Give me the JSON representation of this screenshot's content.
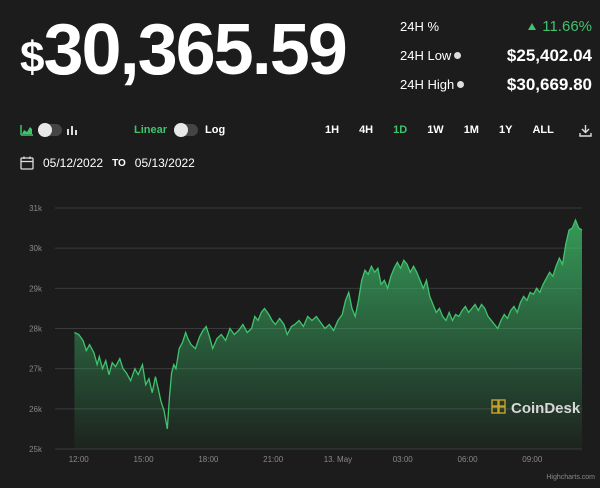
{
  "price": {
    "symbol": "$",
    "value": "30,365.59"
  },
  "stats": [
    {
      "label": "24H %",
      "value": "11.66%",
      "indicator": "up-triangle",
      "color": "#3ec46d"
    },
    {
      "label": "24H Low",
      "value": "$25,402.04",
      "info_icon": true
    },
    {
      "label": "24H High",
      "value": "$30,669.80",
      "info_icon": true
    }
  ],
  "controls": {
    "chart_type_icons": [
      "area-chart-icon",
      "bar-chart-icon"
    ],
    "scale_left": "Linear",
    "scale_right": "Log",
    "ranges": [
      "1H",
      "4H",
      "1D",
      "1W",
      "1M",
      "1Y",
      "ALL"
    ],
    "active_range": "1D",
    "download_icon": "download-icon"
  },
  "dates": {
    "from": "05/12/2022",
    "to_label": "TO",
    "to": "05/13/2022",
    "icon": "calendar-icon"
  },
  "watermark": "CoinDesk",
  "credit": "Highcharts.com",
  "colors": {
    "accent": "#3ec46d",
    "background": "#1c1c1c",
    "line": "#3ec46d"
  },
  "chart_data": {
    "type": "area",
    "x_tick_labels": [
      "12:00",
      "15:00",
      "18:00",
      "21:00",
      "13. May",
      "03:00",
      "06:00",
      "09:00"
    ],
    "y_tick_labels": [
      "25k",
      "26k",
      "27k",
      "28k",
      "29k",
      "30k",
      "31k"
    ],
    "ylim": [
      25000,
      31000
    ],
    "x_range_hours": [
      -1.1,
      23.3
    ],
    "points": [
      [
        -0.2,
        27.9
      ],
      [
        0,
        27.85
      ],
      [
        0.2,
        27.7
      ],
      [
        0.35,
        27.45
      ],
      [
        0.5,
        27.6
      ],
      [
        0.7,
        27.4
      ],
      [
        0.85,
        27.1
      ],
      [
        0.95,
        27.3
      ],
      [
        1.1,
        27.0
      ],
      [
        1.25,
        27.2
      ],
      [
        1.4,
        26.85
      ],
      [
        1.55,
        27.15
      ],
      [
        1.7,
        27.05
      ],
      [
        1.9,
        27.25
      ],
      [
        2.05,
        27.0
      ],
      [
        2.2,
        26.9
      ],
      [
        2.4,
        26.7
      ],
      [
        2.6,
        27.0
      ],
      [
        2.75,
        26.85
      ],
      [
        2.95,
        27.1
      ],
      [
        3.1,
        26.6
      ],
      [
        3.25,
        26.75
      ],
      [
        3.4,
        26.4
      ],
      [
        3.55,
        26.8
      ],
      [
        3.7,
        26.45
      ],
      [
        3.8,
        26.2
      ],
      [
        3.95,
        25.95
      ],
      [
        4.1,
        25.5
      ],
      [
        4.2,
        26.3
      ],
      [
        4.3,
        26.9
      ],
      [
        4.4,
        27.1
      ],
      [
        4.5,
        27.0
      ],
      [
        4.65,
        27.5
      ],
      [
        4.8,
        27.65
      ],
      [
        4.95,
        27.9
      ],
      [
        5.05,
        27.75
      ],
      [
        5.2,
        27.6
      ],
      [
        5.4,
        27.5
      ],
      [
        5.6,
        27.8
      ],
      [
        5.75,
        27.95
      ],
      [
        5.9,
        28.05
      ],
      [
        6.05,
        27.8
      ],
      [
        6.2,
        27.5
      ],
      [
        6.4,
        27.75
      ],
      [
        6.6,
        27.85
      ],
      [
        6.8,
        27.7
      ],
      [
        7.0,
        28.0
      ],
      [
        7.2,
        27.85
      ],
      [
        7.4,
        27.95
      ],
      [
        7.6,
        28.1
      ],
      [
        7.8,
        27.9
      ],
      [
        8.0,
        28.0
      ],
      [
        8.15,
        28.3
      ],
      [
        8.3,
        28.2
      ],
      [
        8.45,
        28.4
      ],
      [
        8.6,
        28.5
      ],
      [
        8.8,
        28.35
      ],
      [
        8.95,
        28.2
      ],
      [
        9.1,
        28.1
      ],
      [
        9.3,
        28.25
      ],
      [
        9.5,
        28.1
      ],
      [
        9.65,
        27.85
      ],
      [
        9.85,
        28.05
      ],
      [
        10.0,
        28.1
      ],
      [
        10.2,
        28.2
      ],
      [
        10.4,
        28.05
      ],
      [
        10.6,
        28.3
      ],
      [
        10.8,
        28.2
      ],
      [
        11.0,
        28.3
      ],
      [
        11.2,
        28.15
      ],
      [
        11.4,
        28.0
      ],
      [
        11.6,
        28.1
      ],
      [
        11.8,
        27.95
      ],
      [
        12.0,
        28.2
      ],
      [
        12.2,
        28.35
      ],
      [
        12.35,
        28.7
      ],
      [
        12.5,
        28.9
      ],
      [
        12.65,
        28.5
      ],
      [
        12.8,
        28.3
      ],
      [
        12.95,
        28.7
      ],
      [
        13.1,
        29.2
      ],
      [
        13.25,
        29.45
      ],
      [
        13.4,
        29.35
      ],
      [
        13.55,
        29.55
      ],
      [
        13.7,
        29.4
      ],
      [
        13.85,
        29.5
      ],
      [
        14.0,
        29.1
      ],
      [
        14.15,
        29.2
      ],
      [
        14.3,
        29.0
      ],
      [
        14.45,
        29.3
      ],
      [
        14.6,
        29.5
      ],
      [
        14.75,
        29.65
      ],
      [
        14.9,
        29.5
      ],
      [
        15.05,
        29.7
      ],
      [
        15.2,
        29.6
      ],
      [
        15.35,
        29.4
      ],
      [
        15.5,
        29.55
      ],
      [
        15.65,
        29.4
      ],
      [
        15.8,
        29.2
      ],
      [
        15.95,
        29.0
      ],
      [
        16.1,
        29.2
      ],
      [
        16.25,
        28.8
      ],
      [
        16.4,
        28.6
      ],
      [
        16.55,
        28.4
      ],
      [
        16.7,
        28.5
      ],
      [
        16.85,
        28.3
      ],
      [
        17.0,
        28.2
      ],
      [
        17.15,
        28.4
      ],
      [
        17.3,
        28.2
      ],
      [
        17.45,
        28.35
      ],
      [
        17.6,
        28.3
      ],
      [
        17.75,
        28.45
      ],
      [
        17.9,
        28.55
      ],
      [
        18.05,
        28.4
      ],
      [
        18.2,
        28.5
      ],
      [
        18.35,
        28.6
      ],
      [
        18.5,
        28.45
      ],
      [
        18.65,
        28.6
      ],
      [
        18.8,
        28.5
      ],
      [
        18.95,
        28.3
      ],
      [
        19.1,
        28.2
      ],
      [
        19.25,
        28.1
      ],
      [
        19.4,
        28.0
      ],
      [
        19.55,
        28.2
      ],
      [
        19.7,
        28.35
      ],
      [
        19.85,
        28.25
      ],
      [
        20.0,
        28.45
      ],
      [
        20.15,
        28.55
      ],
      [
        20.3,
        28.4
      ],
      [
        20.45,
        28.65
      ],
      [
        20.6,
        28.8
      ],
      [
        20.75,
        28.7
      ],
      [
        20.9,
        28.9
      ],
      [
        21.05,
        28.85
      ],
      [
        21.2,
        29.0
      ],
      [
        21.35,
        28.9
      ],
      [
        21.5,
        29.1
      ],
      [
        21.65,
        29.25
      ],
      [
        21.8,
        29.4
      ],
      [
        21.95,
        29.3
      ],
      [
        22.1,
        29.55
      ],
      [
        22.25,
        29.75
      ],
      [
        22.4,
        29.6
      ],
      [
        22.55,
        30.1
      ],
      [
        22.7,
        30.45
      ],
      [
        22.85,
        30.5
      ],
      [
        23.0,
        30.7
      ],
      [
        23.15,
        30.5
      ],
      [
        23.3,
        30.45
      ]
    ]
  }
}
